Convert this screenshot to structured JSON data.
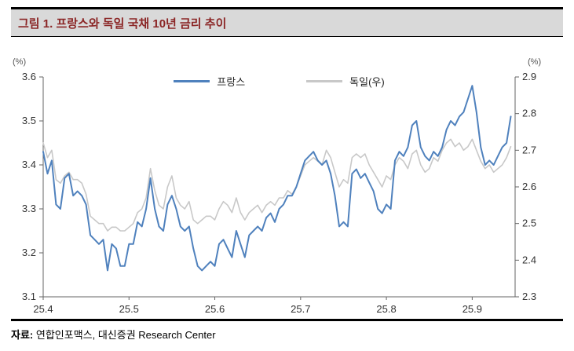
{
  "header": {
    "title": "그림 1. 프랑스와 독일 국채 10년 금리 추이",
    "title_color": "#8b2626",
    "bar_bg": "#d9d9d9"
  },
  "footer": {
    "source_label": "자료:",
    "source_text": " 연합인포맥스, 대신증권 Research Center"
  },
  "chart_data": {
    "type": "line",
    "title": "프랑스와 독일 국채 10년 금리 추이",
    "grid": false,
    "legend_position": "top-center",
    "left_axis": {
      "unit": "(%)",
      "min": 3.1,
      "max": 3.6,
      "ticks": [
        3.1,
        3.2,
        3.3,
        3.4,
        3.5,
        3.6
      ]
    },
    "right_axis": {
      "unit": "(%)",
      "min": 2.3,
      "max": 2.9,
      "ticks": [
        2.3,
        2.4,
        2.5,
        2.6,
        2.7,
        2.8,
        2.9
      ]
    },
    "x_axis": {
      "min": 25.4,
      "max": 25.95,
      "ticks": [
        25.4,
        25.5,
        25.6,
        25.7,
        25.8,
        25.9
      ]
    },
    "x_start": 25.4,
    "x_step": 0.005,
    "axis_color": "#666666",
    "series": [
      {
        "name": "프랑스",
        "axis": "left",
        "color": "#4f81bd",
        "width": 2,
        "values": [
          3.43,
          3.38,
          3.41,
          3.31,
          3.3,
          3.37,
          3.38,
          3.33,
          3.34,
          3.33,
          3.31,
          3.24,
          3.23,
          3.22,
          3.23,
          3.16,
          3.22,
          3.21,
          3.17,
          3.17,
          3.22,
          3.22,
          3.27,
          3.26,
          3.3,
          3.37,
          3.3,
          3.26,
          3.25,
          3.31,
          3.33,
          3.3,
          3.26,
          3.25,
          3.26,
          3.21,
          3.17,
          3.16,
          3.17,
          3.18,
          3.17,
          3.22,
          3.23,
          3.21,
          3.19,
          3.25,
          3.22,
          3.19,
          3.24,
          3.25,
          3.26,
          3.25,
          3.28,
          3.29,
          3.27,
          3.3,
          3.31,
          3.33,
          3.33,
          3.35,
          3.38,
          3.41,
          3.42,
          3.43,
          3.41,
          3.4,
          3.41,
          3.38,
          3.33,
          3.26,
          3.27,
          3.26,
          3.38,
          3.39,
          3.37,
          3.38,
          3.36,
          3.34,
          3.3,
          3.29,
          3.31,
          3.3,
          3.41,
          3.43,
          3.42,
          3.44,
          3.49,
          3.5,
          3.44,
          3.42,
          3.41,
          3.43,
          3.42,
          3.44,
          3.48,
          3.5,
          3.49,
          3.51,
          3.52,
          3.55,
          3.58,
          3.52,
          3.44,
          3.4,
          3.41,
          3.4,
          3.42,
          3.44,
          3.45,
          3.51
        ]
      },
      {
        "name": "독일(우)",
        "axis": "right",
        "color": "#c8c8c8",
        "width": 1.6,
        "values": [
          2.72,
          2.68,
          2.7,
          2.62,
          2.61,
          2.63,
          2.64,
          2.62,
          2.62,
          2.61,
          2.58,
          2.52,
          2.51,
          2.5,
          2.5,
          2.48,
          2.49,
          2.49,
          2.48,
          2.48,
          2.49,
          2.5,
          2.53,
          2.54,
          2.57,
          2.65,
          2.59,
          2.55,
          2.54,
          2.6,
          2.63,
          2.57,
          2.55,
          2.54,
          2.56,
          2.51,
          2.5,
          2.51,
          2.52,
          2.52,
          2.51,
          2.54,
          2.56,
          2.55,
          2.53,
          2.57,
          2.53,
          2.51,
          2.53,
          2.54,
          2.55,
          2.53,
          2.55,
          2.56,
          2.55,
          2.57,
          2.57,
          2.59,
          2.58,
          2.6,
          2.63,
          2.66,
          2.67,
          2.68,
          2.67,
          2.66,
          2.7,
          2.68,
          2.64,
          2.6,
          2.62,
          2.61,
          2.68,
          2.69,
          2.68,
          2.69,
          2.66,
          2.64,
          2.62,
          2.6,
          2.63,
          2.62,
          2.66,
          2.68,
          2.67,
          2.65,
          2.69,
          2.7,
          2.66,
          2.64,
          2.65,
          2.68,
          2.67,
          2.7,
          2.72,
          2.73,
          2.71,
          2.72,
          2.7,
          2.71,
          2.73,
          2.7,
          2.67,
          2.65,
          2.66,
          2.64,
          2.65,
          2.66,
          2.68,
          2.71
        ]
      }
    ]
  }
}
